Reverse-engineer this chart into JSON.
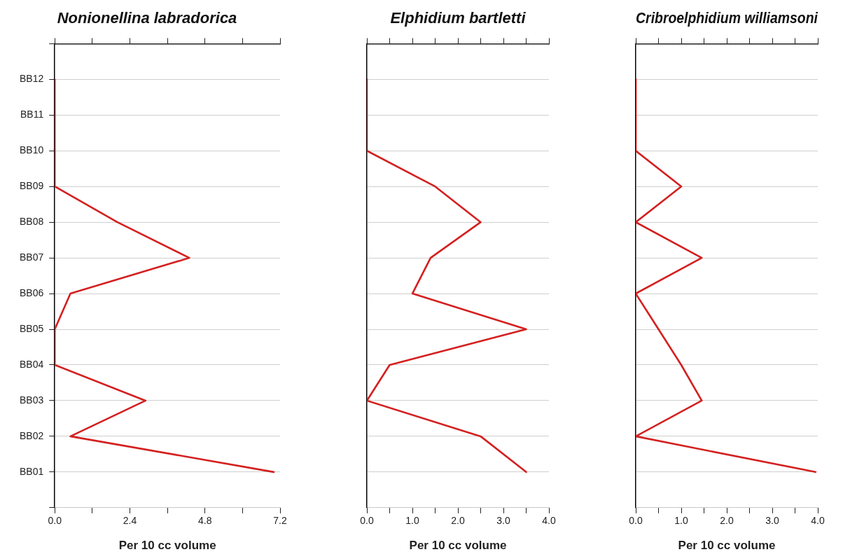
{
  "chart_data": [
    {
      "type": "line",
      "orientation": "horizontal",
      "title": "Nonionellina labradorica",
      "xlabel": "Per 10 cc volume",
      "categories": [
        "BB12",
        "BB11",
        "BB10",
        "BB09",
        "BB08",
        "BB07",
        "BB06",
        "BB05",
        "BB04",
        "BB03",
        "BB02",
        "BB01"
      ],
      "series": [
        {
          "color": "#d42020",
          "values": [
            0,
            0,
            0,
            0,
            2.0,
            4.3,
            0.5,
            0,
            0,
            2.9,
            0.5,
            7.0
          ]
        }
      ],
      "xlim": [
        0,
        7.2
      ],
      "xticks": [
        {
          "value": 0,
          "label": "0.0"
        },
        {
          "value": 1.2,
          "label": null
        },
        2.4,
        {
          "value": 3.6,
          "label": null
        },
        4.8,
        {
          "value": 6.0,
          "label": null
        },
        7.2
      ],
      "grid": "y",
      "marker": "none"
    },
    {
      "type": "line",
      "orientation": "horizontal",
      "title": "Elphidium bartletti",
      "xlabel": "Per 10 cc volume",
      "categories": [
        null,
        null,
        null,
        null,
        null,
        null,
        null,
        null,
        null,
        null,
        null,
        null
      ],
      "series": [
        {
          "color": "#d42020",
          "values": [
            0,
            0,
            0,
            1.5,
            2.5,
            1.4,
            1.0,
            3.5,
            0.5,
            0,
            2.5,
            3.5
          ]
        }
      ],
      "xlim": [
        0,
        4
      ],
      "xticks": [
        {
          "value": 0,
          "label": "0.0"
        },
        {
          "value": 0.5,
          "label": null
        },
        {
          "value": 1,
          "label": "1.0"
        },
        {
          "value": 1.5,
          "label": null
        },
        {
          "value": 2,
          "label": "2.0"
        },
        {
          "value": 2.5,
          "label": null
        },
        {
          "value": 3,
          "label": "3.0"
        },
        {
          "value": 3.5,
          "label": null
        },
        {
          "value": 4,
          "label": "4.0"
        }
      ],
      "grid": "y",
      "marker": "none",
      "tick_labels": "x"
    },
    {
      "type": "line",
      "orientation": "horizontal",
      "title": "Cribroelphidium williamsoni",
      "xlabel": "Per 10 cc volume",
      "categories": [
        null,
        null,
        null,
        null,
        null,
        null,
        null,
        null,
        null,
        null,
        null,
        null
      ],
      "series": [
        {
          "color": "#d42020",
          "values": [
            0,
            0,
            0,
            1.0,
            0,
            1.45,
            0,
            0.5,
            1.0,
            1.45,
            0,
            3.95
          ]
        }
      ],
      "xlim": [
        0,
        4
      ],
      "xticks": [
        {
          "value": 0,
          "label": "0.0"
        },
        {
          "value": 0.5,
          "label": null
        },
        {
          "value": 1,
          "label": "1.0"
        },
        {
          "value": 1.5,
          "label": null
        },
        {
          "value": 2,
          "label": "2.0"
        },
        {
          "value": 2.5,
          "label": null
        },
        {
          "value": 3,
          "label": "3.0"
        },
        {
          "value": 3.5,
          "label": null
        },
        {
          "value": 4,
          "label": "4.0"
        }
      ],
      "grid": "y",
      "marker": "none",
      "tick_labels": "x"
    }
  ]
}
